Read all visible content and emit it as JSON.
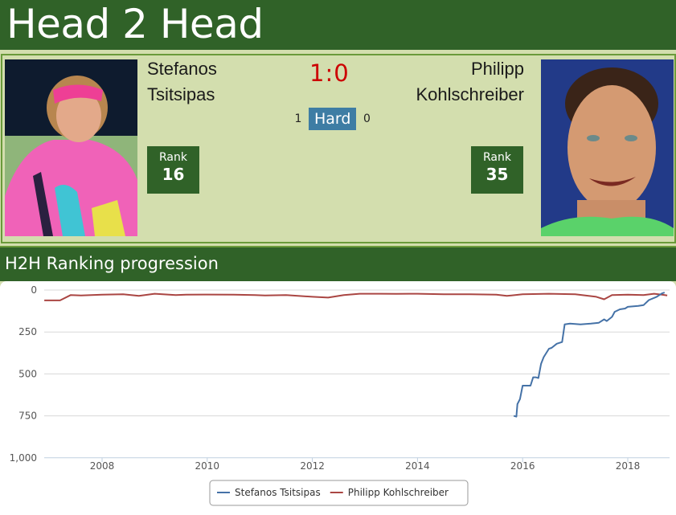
{
  "header": {
    "title": "Head 2 Head"
  },
  "match": {
    "player1": {
      "first_name": "Stefanos",
      "last_name": "Tsitsipas",
      "rank_label": "Rank",
      "rank": "16",
      "photo_icon": "player-photo"
    },
    "player2": {
      "first_name": "Philipp",
      "last_name": "Kohlschreiber",
      "rank_label": "Rank",
      "rank": "35",
      "photo_icon": "player-photo"
    },
    "score": "1:0",
    "surface": {
      "label": "Hard",
      "player1_wins": "1",
      "player2_wins": "0",
      "color": "#3e7da4"
    }
  },
  "section": {
    "title": "H2H Ranking progression"
  },
  "colors": {
    "header_green": "#306228",
    "panel_green": "#d3deae",
    "accent_border": "#6a9a3a",
    "score_red": "#cc0000",
    "series1": "#4572a7",
    "series2": "#aa4643"
  },
  "chart_data": {
    "type": "line",
    "title": "H2H Ranking progression",
    "xlabel": "",
    "ylabel": "",
    "y_reversed": true,
    "ylim": [
      0,
      1000
    ],
    "yticks": [
      0,
      250,
      500,
      750,
      1000
    ],
    "ytick_labels": [
      "0",
      "250",
      "500",
      "750",
      "1,000"
    ],
    "xticks": [
      2008,
      2010,
      2012,
      2014,
      2016,
      2018
    ],
    "xlim": [
      2006.8,
      2018.8
    ],
    "grid": true,
    "legend_position": "bottom-center",
    "series": [
      {
        "name": "Stefanos Tsitsipas",
        "color": "#4572a7",
        "x": [
          2015.83,
          2015.88,
          2015.9,
          2015.95,
          2016.0,
          2016.05,
          2016.15,
          2016.2,
          2016.25,
          2016.3,
          2016.35,
          2016.4,
          2016.5,
          2016.55,
          2016.65,
          2016.75,
          2016.8,
          2016.9,
          2017.1,
          2017.3,
          2017.45,
          2017.55,
          2017.6,
          2017.7,
          2017.75,
          2017.85,
          2017.95,
          2018.0,
          2018.2,
          2018.3,
          2018.4,
          2018.55,
          2018.65,
          2018.7
        ],
        "values": [
          750,
          755,
          680,
          650,
          570,
          570,
          570,
          520,
          520,
          525,
          440,
          400,
          350,
          345,
          320,
          310,
          205,
          200,
          205,
          200,
          195,
          175,
          185,
          160,
          130,
          115,
          110,
          100,
          95,
          90,
          60,
          40,
          20,
          15
        ]
      },
      {
        "name": "Philipp Kohlschreiber",
        "color": "#aa4643",
        "x": [
          2006.9,
          2007.2,
          2007.4,
          2007.6,
          2008.0,
          2008.4,
          2008.7,
          2009.0,
          2009.4,
          2009.6,
          2010.0,
          2010.5,
          2010.9,
          2011.1,
          2011.5,
          2012.0,
          2012.3,
          2012.6,
          2012.9,
          2013.3,
          2013.6,
          2014.0,
          2014.5,
          2015.0,
          2015.5,
          2015.7,
          2016.0,
          2016.5,
          2017.0,
          2017.4,
          2017.55,
          2017.7,
          2018.0,
          2018.3,
          2018.5,
          2018.65,
          2018.75
        ],
        "values": [
          62,
          62,
          30,
          32,
          28,
          25,
          35,
          22,
          30,
          28,
          27,
          28,
          30,
          32,
          30,
          40,
          45,
          30,
          22,
          22,
          23,
          22,
          25,
          25,
          28,
          35,
          25,
          22,
          25,
          40,
          55,
          30,
          28,
          30,
          22,
          28,
          32
        ]
      }
    ]
  },
  "legend": {
    "items": [
      {
        "label": "Stefanos Tsitsipas",
        "color": "#4572a7"
      },
      {
        "label": "Philipp Kohlschreiber",
        "color": "#aa4643"
      }
    ]
  }
}
